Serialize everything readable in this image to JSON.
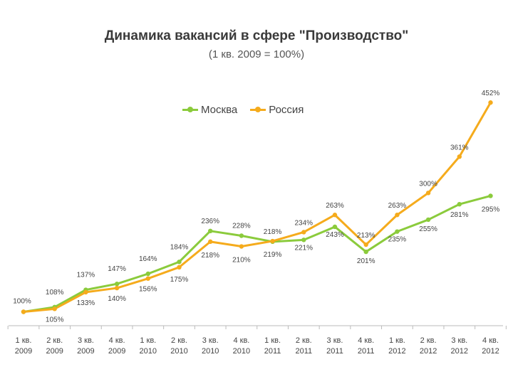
{
  "chart_data": {
    "type": "line",
    "title": "Динамика вакансий в сфере \"Производство\"",
    "subtitle": "(1 кв. 2009 = 100%)",
    "legend_position": "top-center",
    "grid": false,
    "categories": [
      [
        "1 кв.",
        "2009"
      ],
      [
        "2 кв.",
        "2009"
      ],
      [
        "3 кв.",
        "2009"
      ],
      [
        "4 кв.",
        "2009"
      ],
      [
        "1 кв.",
        "2010"
      ],
      [
        "2 кв.",
        "2010"
      ],
      [
        "3 кв.",
        "2010"
      ],
      [
        "4 кв.",
        "2010"
      ],
      [
        "1 кв.",
        "2011"
      ],
      [
        "2 кв.",
        "2011"
      ],
      [
        "3 кв.",
        "2011"
      ],
      [
        "4 кв.",
        "2011"
      ],
      [
        "1 кв.",
        "2012"
      ],
      [
        "2 кв.",
        "2012"
      ],
      [
        "3 кв.",
        "2012"
      ],
      [
        "4 кв.",
        "2012"
      ]
    ],
    "ylim": [
      90,
      460
    ],
    "series": [
      {
        "name": "Москва",
        "color": "#8bcb3c",
        "values": [
          100,
          108,
          137,
          147,
          164,
          184,
          236,
          228,
          218,
          221,
          243,
          201,
          235,
          255,
          281,
          295
        ],
        "labels": [
          "",
          "108%",
          "137%",
          "147%",
          "164%",
          "184%",
          "236%",
          "228%",
          "218%",
          "221%",
          "243%",
          "201%",
          "235%",
          "255%",
          "281%",
          "295%"
        ]
      },
      {
        "name": "Россия",
        "color": "#f5ab1c",
        "values": [
          100,
          105,
          133,
          140,
          156,
          175,
          218,
          210,
          219,
          234,
          263,
          213,
          263,
          300,
          361,
          452
        ],
        "labels": [
          "100%",
          "105%",
          "133%",
          "140%",
          "156%",
          "175%",
          "218%",
          "210%",
          "219%",
          "234%",
          "263%",
          "213%",
          "263%",
          "300%",
          "361%",
          "452%"
        ]
      }
    ]
  }
}
